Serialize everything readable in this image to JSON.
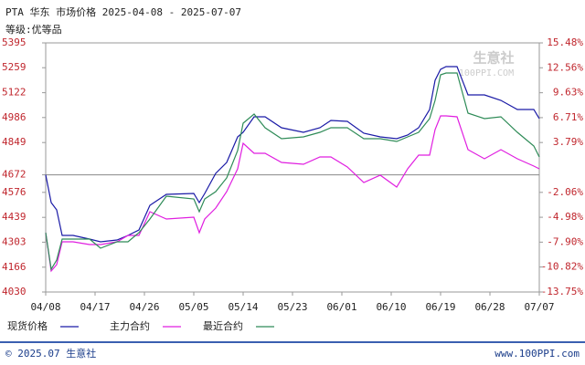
{
  "chart_data": {
    "type": "line",
    "title": "PTA 华东 市场价格 2025-04-08 - 2025-07-07",
    "subtitle": "等级:优等品",
    "x": [
      0,
      1,
      2,
      3,
      5,
      8,
      10,
      13,
      15,
      17,
      19,
      22,
      27,
      28,
      29,
      31,
      33,
      35,
      36,
      38,
      40,
      43,
      47,
      50,
      52,
      55,
      58,
      61,
      64,
      66,
      68,
      70,
      71,
      72,
      73,
      75,
      77,
      80,
      83,
      86,
      89,
      90
    ],
    "xlim": [
      0,
      90
    ],
    "xticks": [
      {
        "value": 0,
        "label": "04/08"
      },
      {
        "value": 9,
        "label": "04/17"
      },
      {
        "value": 18,
        "label": "04/26"
      },
      {
        "value": 27,
        "label": "05/05"
      },
      {
        "value": 36,
        "label": "05/14"
      },
      {
        "value": 45,
        "label": "05/23"
      },
      {
        "value": 54,
        "label": "06/01"
      },
      {
        "value": 63,
        "label": "06/10"
      },
      {
        "value": 72,
        "label": "06/19"
      },
      {
        "value": 81,
        "label": "06/28"
      },
      {
        "value": 90,
        "label": "07/07"
      }
    ],
    "ylim": [
      4030,
      5395
    ],
    "yticks": [
      5395,
      5259,
      5122,
      4986,
      4849,
      4672,
      4576,
      4439,
      4303,
      4166,
      4030
    ],
    "y2lim": [
      -13.75,
      15.48
    ],
    "y2ticks": [
      {
        "value": 15.48,
        "label": "15.48%"
      },
      {
        "value": 12.56,
        "label": "12.56%"
      },
      {
        "value": 9.63,
        "label": "9.63%"
      },
      {
        "value": 6.71,
        "label": "6.71%"
      },
      {
        "value": 3.79,
        "label": "3.79%"
      },
      {
        "value": -2.06,
        "label": "-2.06%"
      },
      {
        "value": -4.98,
        "label": "-4.98%"
      },
      {
        "value": -7.9,
        "label": "-7.90%"
      },
      {
        "value": -10.82,
        "label": "-10.82%"
      },
      {
        "value": -13.75,
        "label": "-13.75%"
      }
    ],
    "series": [
      {
        "name": "现货价格",
        "color": "#1a1aa6",
        "values": [
          4672,
          4520,
          4480,
          4340,
          4340,
          4320,
          4305,
          4315,
          4340,
          4370,
          4505,
          4565,
          4570,
          4520,
          4570,
          4680,
          4740,
          4880,
          4905,
          4990,
          4990,
          4930,
          4905,
          4930,
          4970,
          4965,
          4900,
          4880,
          4870,
          4890,
          4930,
          5030,
          5190,
          5250,
          5265,
          5265,
          5110,
          5110,
          5080,
          5030,
          5030,
          4980
        ]
      },
      {
        "name": "主力合约",
        "color": "#e01ee0",
        "values": [
          4355,
          4145,
          4180,
          4305,
          4305,
          4290,
          4290,
          4305,
          4340,
          4340,
          4470,
          4430,
          4440,
          4355,
          4430,
          4490,
          4580,
          4705,
          4845,
          4790,
          4790,
          4740,
          4730,
          4770,
          4770,
          4715,
          4630,
          4670,
          4605,
          4705,
          4780,
          4780,
          4920,
          4995,
          4995,
          4990,
          4810,
          4760,
          4810,
          4760,
          4720,
          4705
        ]
      },
      {
        "name": "最近合约",
        "color": "#2e8b57",
        "values": [
          4355,
          4155,
          4205,
          4320,
          4320,
          4320,
          4270,
          4305,
          4305,
          4355,
          4430,
          4555,
          4540,
          4470,
          4540,
          4580,
          4655,
          4805,
          4955,
          5005,
          4930,
          4870,
          4880,
          4905,
          4930,
          4930,
          4870,
          4870,
          4855,
          4880,
          4905,
          4980,
          5080,
          5220,
          5230,
          5230,
          5010,
          4980,
          4990,
          4905,
          4830,
          4770
        ]
      }
    ]
  },
  "watermark": {
    "name": "生意社",
    "site": "100PPI.COM"
  },
  "footer": {
    "copyright": "© 2025.07 生意社",
    "site": "www.100PPI.com"
  }
}
